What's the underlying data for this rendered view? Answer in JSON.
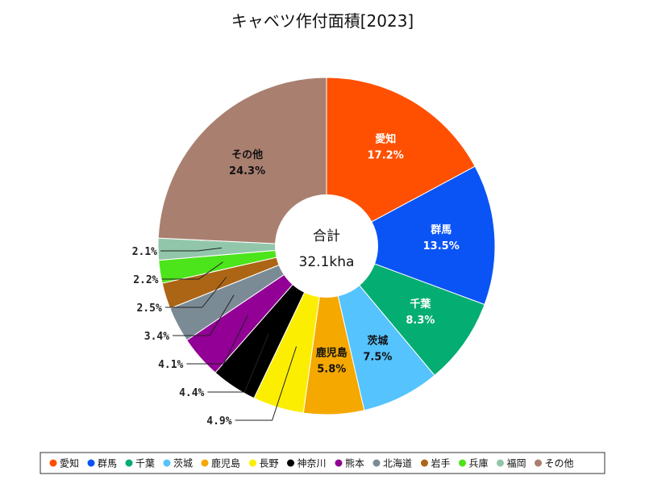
{
  "chart_data": {
    "type": "pie",
    "title": "キャベツ作付面積[2023]",
    "center_label": "合計",
    "center_value": "32.1kha",
    "legend_position": "bottom",
    "slices": [
      {
        "name": "愛知",
        "value": 17.2,
        "label": "17.2%",
        "color": "#fe5000",
        "text_color": "#ffffff",
        "inside": true
      },
      {
        "name": "群馬",
        "value": 13.5,
        "label": "13.5%",
        "color": "#0a54f5",
        "text_color": "#ffffff",
        "inside": true
      },
      {
        "name": "千葉",
        "value": 8.3,
        "label": "8.3%",
        "color": "#04ad72",
        "text_color": "#ffffff",
        "inside": true
      },
      {
        "name": "茨城",
        "value": 7.5,
        "label": "7.5%",
        "color": "#55c3fd",
        "text_color": "#111111",
        "inside": true
      },
      {
        "name": "鹿児島",
        "value": 5.8,
        "label": "5.8%",
        "color": "#f5a800",
        "text_color": "#111111",
        "inside": true
      },
      {
        "name": "長野",
        "value": 4.9,
        "label": "4.9%",
        "color": "#fcee00",
        "text_color": "#111111",
        "inside": false
      },
      {
        "name": "神奈川",
        "value": 4.4,
        "label": "4.4%",
        "color": "#000000",
        "text_color": "#111111",
        "inside": false
      },
      {
        "name": "熊本",
        "value": 4.1,
        "label": "4.1%",
        "color": "#920095",
        "text_color": "#111111",
        "inside": false
      },
      {
        "name": "北海道",
        "value": 3.4,
        "label": "3.4%",
        "color": "#7b8b96",
        "text_color": "#111111",
        "inside": false
      },
      {
        "name": "岩手",
        "value": 2.5,
        "label": "2.5%",
        "color": "#ac6515",
        "text_color": "#111111",
        "inside": false
      },
      {
        "name": "兵庫",
        "value": 2.2,
        "label": "2.2%",
        "color": "#4ce41a",
        "text_color": "#111111",
        "inside": false
      },
      {
        "name": "福岡",
        "value": 2.1,
        "label": "2.1%",
        "color": "#92c6aa",
        "text_color": "#111111",
        "inside": false
      },
      {
        "name": "その他",
        "value": 24.3,
        "label": "24.3%",
        "color": "#a97f70",
        "text_color": "#111111",
        "inside": true
      }
    ]
  }
}
